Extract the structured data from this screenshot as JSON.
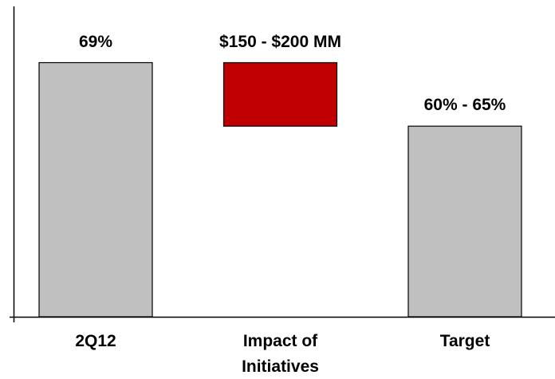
{
  "chart_data": {
    "type": "waterfall",
    "categories": [
      "2Q12",
      "Impact of Initiatives",
      "Target"
    ],
    "values": [
      69,
      -6.5,
      62.5
    ],
    "value_labels": [
      "69%",
      "$150 - $200 MM",
      "60% - 65%"
    ],
    "measure": [
      "absolute",
      "relative",
      "absolute"
    ],
    "colors": [
      "#c0c0c0",
      "#c00000",
      "#c0c0c0"
    ],
    "ylim": [
      43,
      75
    ]
  }
}
